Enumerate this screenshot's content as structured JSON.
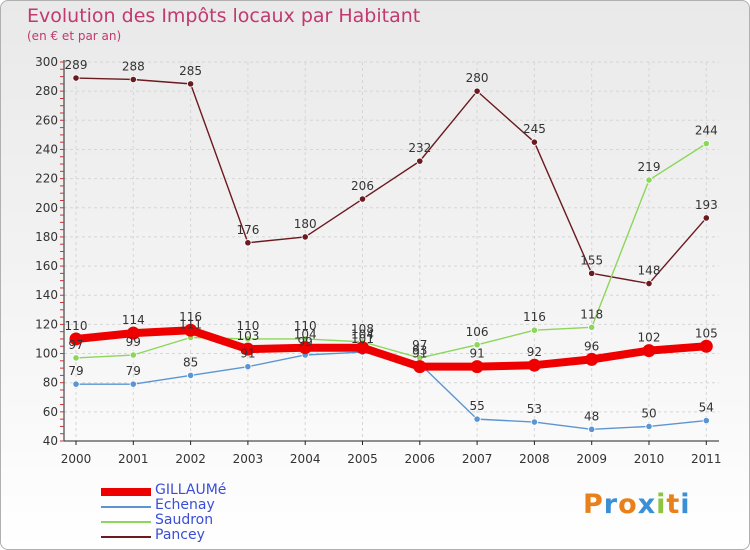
{
  "chart_data": {
    "type": "line",
    "title": "Evolution des Impôts locaux par Habitant",
    "subtitle": "(en € et par an)",
    "xlabel": "",
    "ylabel": "",
    "ylim": [
      40,
      300
    ],
    "yticks": [
      "40",
      "60",
      "80",
      "100",
      "120",
      "140",
      "160",
      "180",
      "200",
      "220",
      "240",
      "260",
      "280",
      "300"
    ],
    "categories": [
      "2000",
      "2001",
      "2002",
      "2003",
      "2004",
      "2005",
      "2006",
      "2007",
      "2008",
      "2009",
      "2010",
      "2011"
    ],
    "series": [
      {
        "name": "Pancey",
        "color": "#6b1a1f",
        "values": [
          289,
          288,
          285,
          176,
          180,
          206,
          232,
          280,
          245,
          155,
          148,
          193
        ]
      },
      {
        "name": "Saudron",
        "color": "#8cd65a",
        "values": [
          97,
          99,
          111,
          110,
          110,
          108,
          97,
          106,
          116,
          118,
          219,
          244
        ]
      },
      {
        "name": "Echenay",
        "color": "#5b96d2",
        "values": [
          79,
          79,
          85,
          91,
          99,
          101,
          93,
          55,
          53,
          48,
          50,
          54
        ]
      },
      {
        "name": "GILLAUMé",
        "color": "#ee0000",
        "values": [
          110,
          114,
          116,
          103,
          104,
          104,
          91,
          91,
          92,
          96,
          102,
          105
        ]
      }
    ],
    "legend": {
      "position": "bottom-left",
      "order": [
        "GILLAUMé",
        "Echenay",
        "Saudron",
        "Pancey"
      ]
    }
  },
  "logo": {
    "text": "Proxiti",
    "colors": [
      "#e8801b",
      "#3b8fd6",
      "#e8801b",
      "#3b8fd6",
      "#8cc63f",
      "#e8801b",
      "#3b8fd6"
    ]
  }
}
